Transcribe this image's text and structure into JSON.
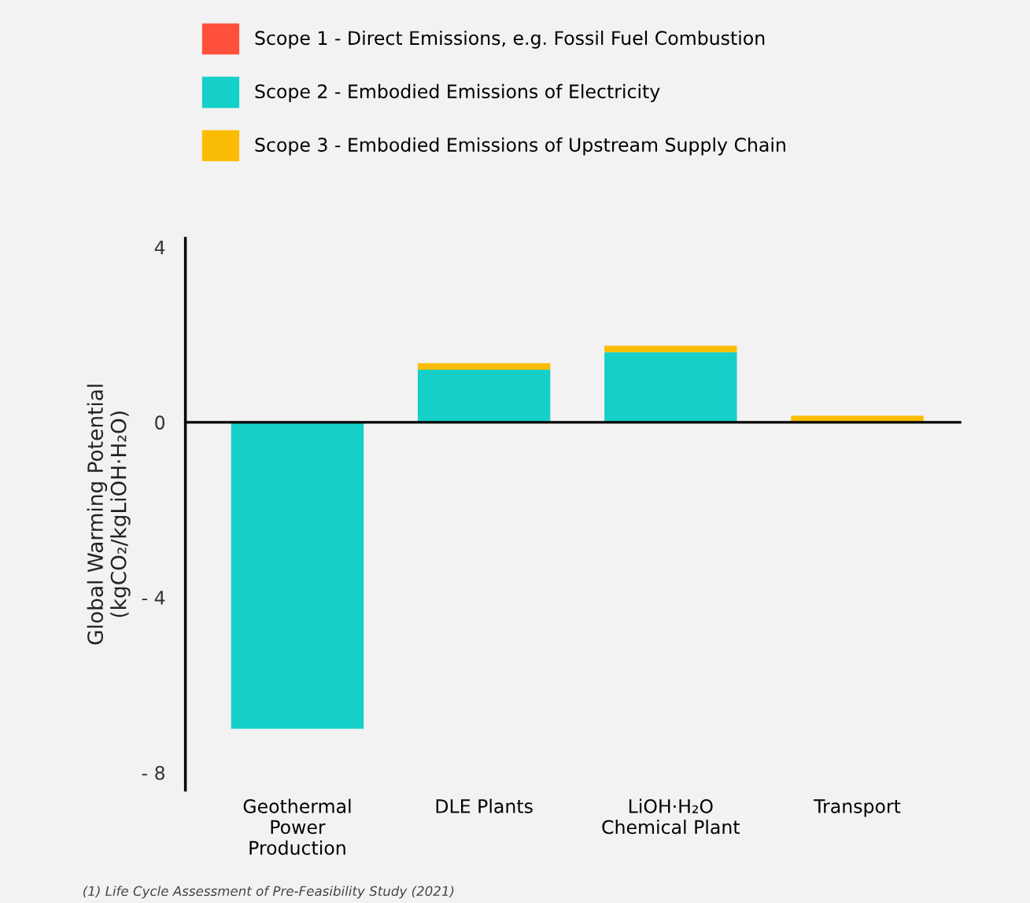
{
  "chart_data": {
    "type": "bar",
    "stacked": true,
    "categories": [
      "Geothermal\nPower\nProduction",
      "DLE Plants",
      "LiOH·H₂O\nChemical Plant",
      "Transport"
    ],
    "series": [
      {
        "name": "Scope 1 - Direct Emissions, e.g. Fossil Fuel Combustion",
        "color": "#ff503c",
        "values": [
          0,
          0,
          0,
          0
        ]
      },
      {
        "name": "Scope 2 - Embodied Emissions of Electricity",
        "color": "#14d0c8",
        "values": [
          -7.0,
          1.2,
          1.6,
          0
        ]
      },
      {
        "name": "Scope 3 - Embodied Emissions of Upstream Supply Chain",
        "color": "#fbbc05",
        "values": [
          0,
          0.15,
          0.15,
          0.15
        ]
      }
    ],
    "ylabel": "Global Warming Potential\n(kgCO₂/kgLiOH·H₂O)",
    "ylim": [
      -8.4,
      4.2
    ],
    "yticks": [
      4,
      0,
      {
        "value": -4,
        "label": "- 4"
      },
      {
        "value": -8,
        "label": "- 8"
      }
    ],
    "legend": "top left",
    "annotations": [
      "(1) Life Cycle Assessment of Pre-Feasibility Study (2021)"
    ]
  }
}
